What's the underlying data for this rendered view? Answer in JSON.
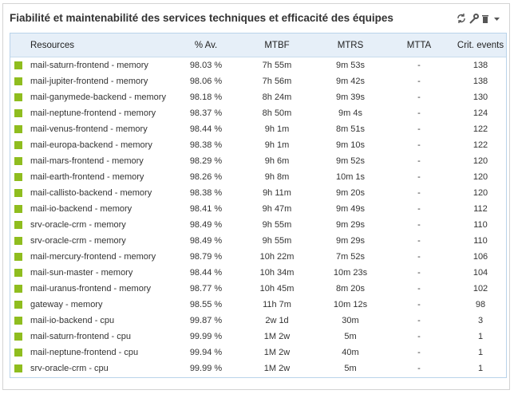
{
  "header": {
    "title": "Fiabilité et maintenabilité des services techniques et efficacité des équipes"
  },
  "table": {
    "columns": [
      "Resources",
      "% Av.",
      "MTBF",
      "MTRS",
      "MTTA",
      "Crit. events"
    ],
    "rows": [
      [
        "mail-saturn-frontend - memory",
        "98.03 %",
        "7h 55m",
        "9m 53s",
        "-",
        "138"
      ],
      [
        "mail-jupiter-frontend - memory",
        "98.06 %",
        "7h 56m",
        "9m 42s",
        "-",
        "138"
      ],
      [
        "mail-ganymede-backend - memory",
        "98.18 %",
        "8h 24m",
        "9m 39s",
        "-",
        "130"
      ],
      [
        "mail-neptune-frontend - memory",
        "98.37 %",
        "8h 50m",
        "9m 4s",
        "-",
        "124"
      ],
      [
        "mail-venus-frontend - memory",
        "98.44 %",
        "9h 1m",
        "8m 51s",
        "-",
        "122"
      ],
      [
        "mail-europa-backend - memory",
        "98.38 %",
        "9h 1m",
        "9m 10s",
        "-",
        "122"
      ],
      [
        "mail-mars-frontend - memory",
        "98.29 %",
        "9h 6m",
        "9m 52s",
        "-",
        "120"
      ],
      [
        "mail-earth-frontend - memory",
        "98.26 %",
        "9h 8m",
        "10m 1s",
        "-",
        "120"
      ],
      [
        "mail-callisto-backend - memory",
        "98.38 %",
        "9h 11m",
        "9m 20s",
        "-",
        "120"
      ],
      [
        "mail-io-backend - memory",
        "98.41 %",
        "9h 47m",
        "9m 49s",
        "-",
        "112"
      ],
      [
        "srv-oracle-crm - memory",
        "98.49 %",
        "9h 55m",
        "9m 29s",
        "-",
        "110"
      ],
      [
        "srv-oracle-crm - memory",
        "98.49 %",
        "9h 55m",
        "9m 29s",
        "-",
        "110"
      ],
      [
        "mail-mercury-frontend - memory",
        "98.79 %",
        "10h 22m",
        "7m 52s",
        "-",
        "106"
      ],
      [
        "mail-sun-master - memory",
        "98.44 %",
        "10h 34m",
        "10m 23s",
        "-",
        "104"
      ],
      [
        "mail-uranus-frontend - memory",
        "98.77 %",
        "10h 45m",
        "8m 20s",
        "-",
        "102"
      ],
      [
        "gateway - memory",
        "98.55 %",
        "11h 7m",
        "10m 12s",
        "-",
        "98"
      ],
      [
        "mail-io-backend - cpu",
        "99.87 %",
        "2w 1d",
        "30m",
        "-",
        "3"
      ],
      [
        "mail-saturn-frontend - cpu",
        "99.99 %",
        "1M 2w",
        "5m",
        "-",
        "1"
      ],
      [
        "mail-neptune-frontend - cpu",
        "99.94 %",
        "1M 2w",
        "40m",
        "-",
        "1"
      ],
      [
        "srv-oracle-crm - cpu",
        "99.99 %",
        "1M 2w",
        "5m",
        "-",
        "1"
      ]
    ]
  }
}
